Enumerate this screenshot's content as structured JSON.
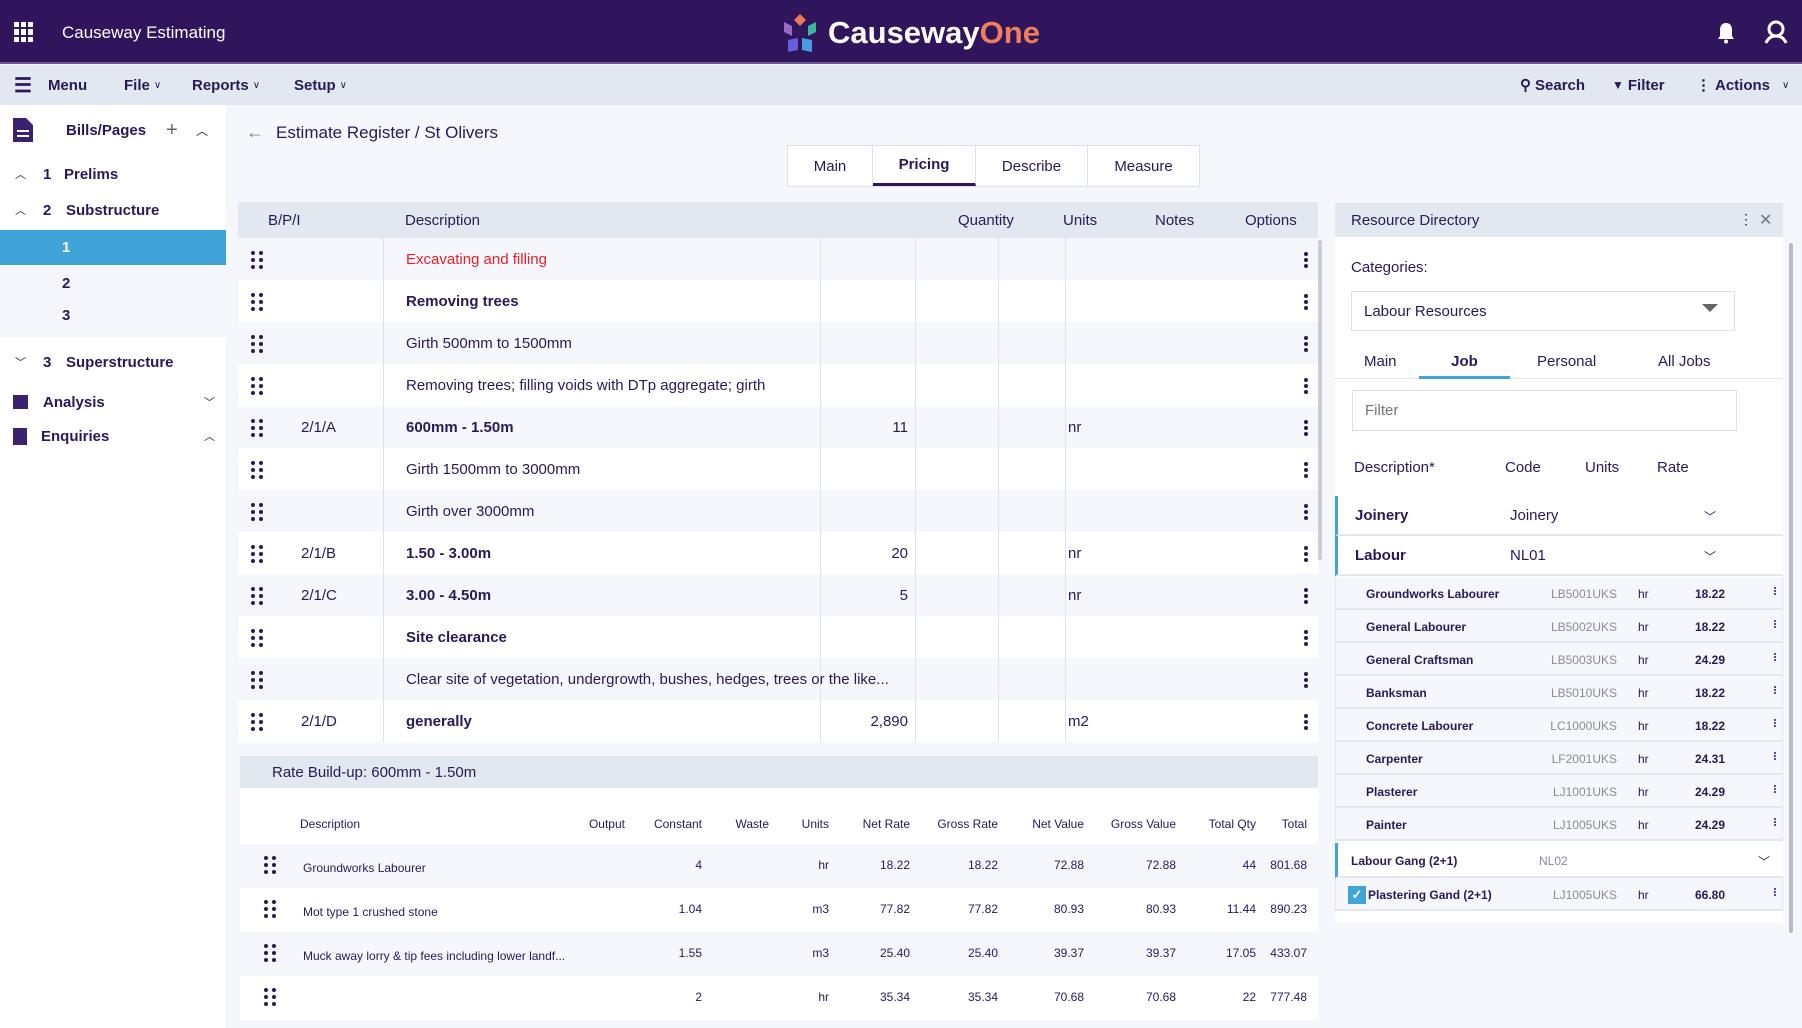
{
  "app": {
    "title": "Causeway Estimating",
    "logo_text": "Causeway",
    "logo_accent": "One"
  },
  "menubar": {
    "menu": "Menu",
    "file": "File",
    "reports": "Reports",
    "setup": "Setup",
    "search": "Search",
    "filter": "Filter",
    "actions": "Actions"
  },
  "sidebar": {
    "title": "Bills/Pages",
    "items": [
      {
        "num": "1",
        "label": "Prelims"
      },
      {
        "num": "2",
        "label": "Substructure"
      },
      {
        "num": "3",
        "label": "Superstructure"
      }
    ],
    "pages": [
      "1",
      "2",
      "3"
    ],
    "analysis": "Analysis",
    "enquiries": "Enquiries"
  },
  "breadcrumb": "Estimate Register / St Olivers",
  "tabs": [
    "Main",
    "Pricing",
    "Describe",
    "Measure"
  ],
  "main_table": {
    "headers": {
      "bpi": "B/P/I",
      "description": "Description",
      "quantity": "Quantity",
      "units": "Units",
      "notes": "Notes",
      "options": "Options"
    },
    "rows": [
      {
        "bpi": "",
        "description": "Excavating and filling",
        "quantity": "",
        "units": "",
        "style": "red"
      },
      {
        "bpi": "",
        "description": "Removing trees",
        "quantity": "",
        "units": "",
        "style": "bold"
      },
      {
        "bpi": "",
        "description": "Girth 500mm to 1500mm",
        "quantity": "",
        "units": "",
        "style": ""
      },
      {
        "bpi": "",
        "description": "Removing trees; filling voids with DTp aggregate; girth",
        "quantity": "",
        "units": "",
        "style": ""
      },
      {
        "bpi": "2/1/A",
        "description": "600mm - 1.50m",
        "quantity": "11",
        "units": "nr",
        "style": "bold"
      },
      {
        "bpi": "",
        "description": "Girth 1500mm to 3000mm",
        "quantity": "",
        "units": "",
        "style": ""
      },
      {
        "bpi": "",
        "description": "Girth over 3000mm",
        "quantity": "",
        "units": "",
        "style": ""
      },
      {
        "bpi": "2/1/B",
        "description": "1.50 - 3.00m",
        "quantity": "20",
        "units": "nr",
        "style": "bold"
      },
      {
        "bpi": "2/1/C",
        "description": "3.00 - 4.50m",
        "quantity": "5",
        "units": "nr",
        "style": "bold"
      },
      {
        "bpi": "",
        "description": "Site clearance",
        "quantity": "",
        "units": "",
        "style": "bold"
      },
      {
        "bpi": "",
        "description": "Clear site of vegetation, undergrowth, bushes, hedges, trees or the like...",
        "quantity": "",
        "units": "",
        "style": ""
      },
      {
        "bpi": "2/1/D",
        "description": "generally",
        "quantity": "2,890",
        "units": "m2",
        "style": "bold"
      }
    ]
  },
  "rate_buildup": {
    "title": "Rate Build-up: 600mm - 1.50m",
    "headers": [
      "Description",
      "Output",
      "Constant",
      "Waste",
      "Units",
      "Net Rate",
      "Gross Rate",
      "Net Value",
      "Gross Value",
      "Total Qty",
      "Total"
    ],
    "rows": [
      [
        "Groundworks Labourer",
        "",
        "4",
        "",
        "hr",
        "18.22",
        "18.22",
        "72.88",
        "72.88",
        "44",
        "801.68"
      ],
      [
        "Mot type 1 crushed stone",
        "",
        "1.04",
        "",
        "m3",
        "77.82",
        "77.82",
        "80.93",
        "80.93",
        "11.44",
        "890.23"
      ],
      [
        "Muck away lorry & tip fees including lower landf...",
        "",
        "1.55",
        "",
        "m3",
        "25.40",
        "25.40",
        "39.37",
        "39.37",
        "17.05",
        "433.07"
      ],
      [
        "",
        "",
        "2",
        "",
        "hr",
        "35.34",
        "35.34",
        "70.68",
        "70.68",
        "22",
        "777.48"
      ]
    ]
  },
  "resource_directory": {
    "title": "Resource Directory",
    "categories_label": "Categories:",
    "category": "Labour Resources",
    "tabs": [
      "Main",
      "Job",
      "Personal",
      "All Jobs"
    ],
    "filter_placeholder": "Filter",
    "headers": [
      "Description*",
      "Code",
      "Units",
      "Rate"
    ],
    "groups": [
      {
        "name": "Joinery",
        "code": "Joinery"
      },
      {
        "name": "Labour",
        "code": "NL01"
      }
    ],
    "items": [
      {
        "desc": "Groundworks Labourer",
        "code": "LB5001UKS",
        "units": "hr",
        "rate": "18.22"
      },
      {
        "desc": "General Labourer",
        "code": "LB5002UKS",
        "units": "hr",
        "rate": "18.22"
      },
      {
        "desc": "General Craftsman",
        "code": "LB5003UKS",
        "units": "hr",
        "rate": "24.29"
      },
      {
        "desc": "Banksman",
        "code": "LB5010UKS",
        "units": "hr",
        "rate": "18.22"
      },
      {
        "desc": "Concrete Labourer",
        "code": "LC1000UKS",
        "units": "hr",
        "rate": "18.22"
      },
      {
        "desc": "Carpenter",
        "code": "LF2001UKS",
        "units": "hr",
        "rate": "24.31"
      },
      {
        "desc": "Plasterer",
        "code": "LJ1001UKS",
        "units": "hr",
        "rate": "24.29"
      },
      {
        "desc": "Painter",
        "code": "LJ1005UKS",
        "units": "hr",
        "rate": "24.29"
      }
    ],
    "gang": {
      "name": "Labour Gang (2+1)",
      "code": "NL02"
    },
    "gang_item": {
      "desc": "Plastering Gand (2+1)",
      "code": "LJ1005UKS",
      "units": "hr",
      "rate": "66.80",
      "checked": true
    }
  },
  "colors": {
    "topbar": "#31155c",
    "accent": "#40a4d8",
    "red": "#e8202a",
    "text": "#2a1858"
  }
}
